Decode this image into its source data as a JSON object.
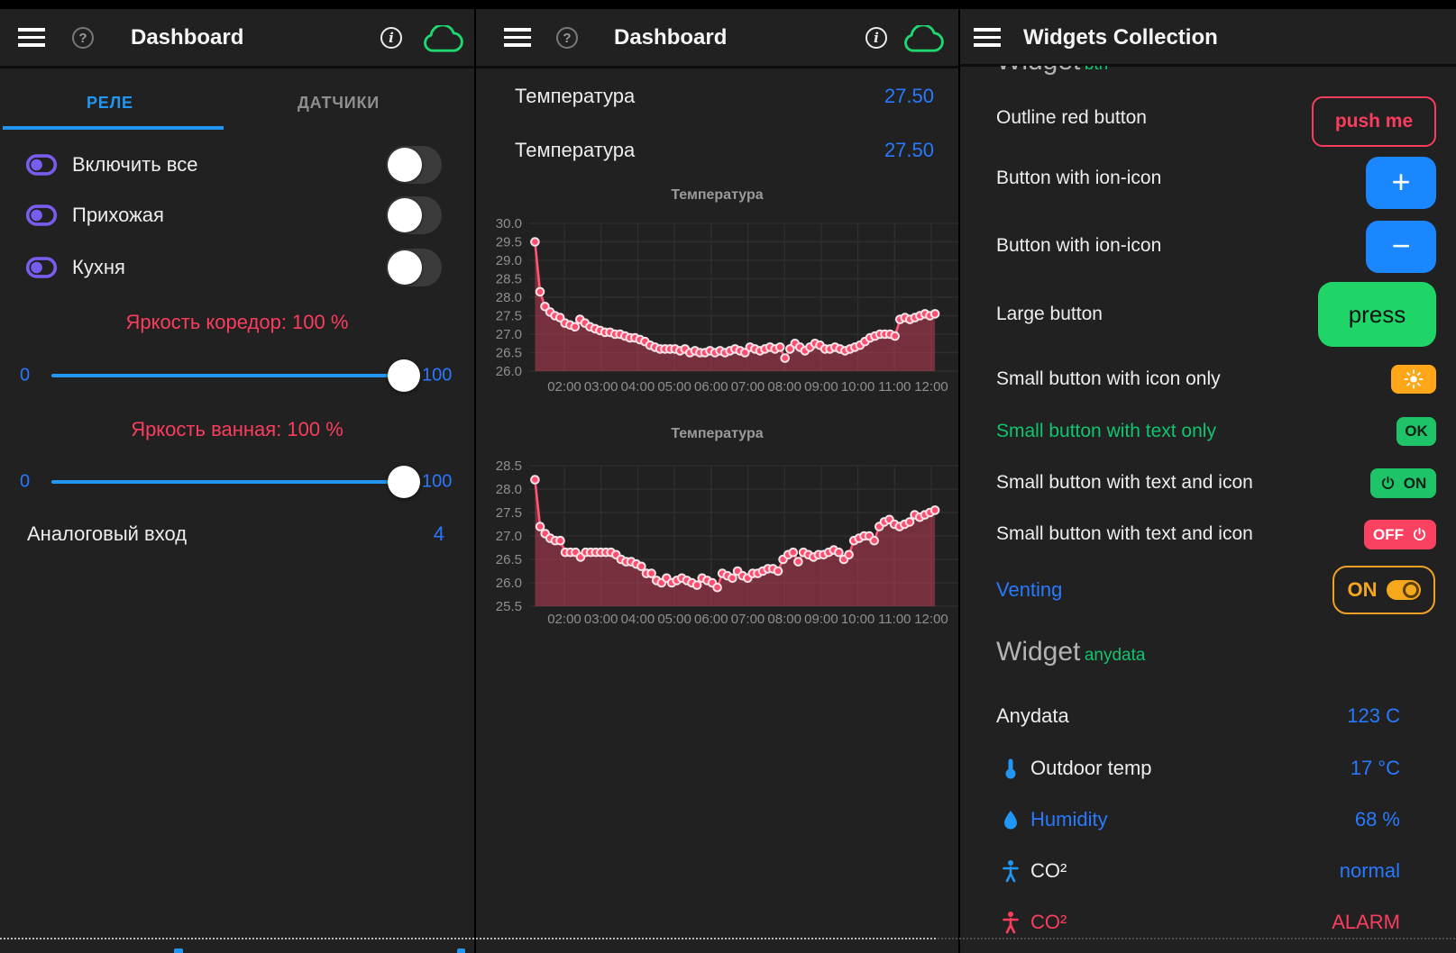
{
  "colors": {
    "background": "#212121",
    "accent_blue": "#2196f3",
    "value_blue": "#2979ff",
    "alert_red": "#fb3d5d",
    "button_green": "#1fc468",
    "text_green": "#10c56d",
    "amber": "#ffa718",
    "purple": "#7a5cf0",
    "chart_pink": "#ff5577",
    "cloud_green": "#1ed76e"
  },
  "icons": {
    "hamburger": "menu-icon",
    "help": "?",
    "info": "i",
    "cloud": "cloud-outline",
    "relay": "toggle-outline-purple",
    "sun": "sun-white",
    "power": "power-arc",
    "thermometer": "thermometer-blue",
    "droplet": "water-drop-blue",
    "body": "person-body"
  },
  "panels": {
    "left": {
      "header": {
        "title": "Dashboard"
      },
      "tabs": [
        {
          "label": "РЕЛЕ",
          "active": true
        },
        {
          "label": "ДАТЧИКИ",
          "active": false
        }
      ],
      "switch_rows": [
        {
          "label": "Включить все",
          "state": "off"
        },
        {
          "label": "Прихожая",
          "state": "off"
        },
        {
          "label": "Кухня",
          "state": "off"
        }
      ],
      "sliders": [
        {
          "label": "Яркость коредор: 100 %",
          "min": "0",
          "max": "100",
          "value": 100
        },
        {
          "label": "Яркость ванная: 100 %",
          "min": "0",
          "max": "100",
          "value": 100
        }
      ],
      "analog_row": {
        "label": "Аналоговый вход",
        "value": "4"
      }
    },
    "middle": {
      "header": {
        "title": "Dashboard"
      },
      "value_rows": [
        {
          "label": "Температура",
          "value": "27.50"
        },
        {
          "label": "Температура",
          "value": "27.50"
        }
      ]
    },
    "right": {
      "header": {
        "title": "Widgets Collection"
      },
      "clipped_heading": {
        "title": "Widget",
        "sub": "btn"
      },
      "button_rows": [
        {
          "label": "Outline red button",
          "button_text": "push me"
        },
        {
          "label": "Button with ion-icon",
          "icon": "plus",
          "icon_glyph": "+"
        },
        {
          "label": "Button with ion-icon",
          "icon": "minus",
          "icon_glyph": "−"
        },
        {
          "label": "Large button",
          "button_text": "press"
        },
        {
          "label": "Small button with icon only",
          "icon": "sun"
        },
        {
          "label": "Small button with text only",
          "button_text": "OK"
        },
        {
          "label": "Small button with text and icon",
          "button_text": "ON",
          "icon": "power"
        },
        {
          "label": "Small button with text and icon",
          "button_text": "OFF",
          "icon": "power"
        },
        {
          "label": "Venting",
          "button_text": "ON",
          "icon": "toggle-on",
          "state": "on"
        }
      ],
      "widget_heading": {
        "title": "Widget",
        "sub": "anydata"
      },
      "data_rows": [
        {
          "label": "Anydata",
          "value": "123 C"
        },
        {
          "icon": "thermometer",
          "label": "Outdoor temp",
          "value": "17 °C"
        },
        {
          "icon": "droplet",
          "label": "Humidity",
          "value": "68 %"
        },
        {
          "icon": "body",
          "label": "CO²",
          "value": "normal"
        },
        {
          "icon": "body",
          "label": "CO²",
          "value": "ALARM"
        }
      ]
    }
  },
  "chart_data": [
    {
      "type": "area",
      "title": "Температура",
      "series_name": "Температура",
      "ylim": [
        26.0,
        30.0
      ],
      "yticks": [
        "30.0",
        "29.5",
        "29.0",
        "28.5",
        "28.0",
        "27.5",
        "27.0",
        "26.5",
        "26.0"
      ],
      "x_labels": [
        "02:00",
        "03:00",
        "04:00",
        "05:00",
        "06:00",
        "07:00",
        "08:00",
        "09:00",
        "10:00",
        "11:00",
        "12:00"
      ],
      "x_hours": [
        2,
        3,
        4,
        5,
        6,
        7,
        8,
        9,
        10,
        11,
        12
      ],
      "x_range": [
        1.2,
        12.1
      ],
      "grid": true,
      "legend": "none",
      "values": [
        29.5,
        28.15,
        27.75,
        27.6,
        27.5,
        27.45,
        27.3,
        27.25,
        27.2,
        27.4,
        27.3,
        27.2,
        27.15,
        27.1,
        27.05,
        27.05,
        27.0,
        27.0,
        26.95,
        26.9,
        26.9,
        26.85,
        26.8,
        26.7,
        26.65,
        26.6,
        26.6,
        26.6,
        26.6,
        26.55,
        26.6,
        26.5,
        26.55,
        26.5,
        26.5,
        26.55,
        26.5,
        26.55,
        26.5,
        26.55,
        26.6,
        26.55,
        26.5,
        26.65,
        26.6,
        26.55,
        26.6,
        26.65,
        26.6,
        26.65,
        26.35,
        26.6,
        26.75,
        26.65,
        26.55,
        26.65,
        26.75,
        26.7,
        26.6,
        26.6,
        26.65,
        26.6,
        26.55,
        26.6,
        26.65,
        26.7,
        26.8,
        26.9,
        26.95,
        27.0,
        27.0,
        27.0,
        26.95,
        27.4,
        27.45,
        27.4,
        27.45,
        27.5,
        27.55,
        27.5,
        27.55
      ]
    },
    {
      "type": "area",
      "title": "Температура",
      "series_name": "Температура",
      "ylim": [
        25.5,
        28.5
      ],
      "yticks": [
        "28.5",
        "28.0",
        "27.5",
        "27.0",
        "26.5",
        "26.0",
        "25.5"
      ],
      "x_labels": [
        "02:00",
        "03:00",
        "04:00",
        "05:00",
        "06:00",
        "07:00",
        "08:00",
        "09:00",
        "10:00",
        "11:00",
        "12:00"
      ],
      "x_hours": [
        2,
        3,
        4,
        5,
        6,
        7,
        8,
        9,
        10,
        11,
        12
      ],
      "x_range": [
        1.2,
        12.1
      ],
      "grid": true,
      "legend": "none",
      "values": [
        28.2,
        27.2,
        27.05,
        26.95,
        26.9,
        26.9,
        26.65,
        26.65,
        26.65,
        26.55,
        26.65,
        26.65,
        26.65,
        26.65,
        26.65,
        26.65,
        26.6,
        26.5,
        26.45,
        26.45,
        26.4,
        26.35,
        26.2,
        26.2,
        26.05,
        26.0,
        26.1,
        26.0,
        26.05,
        26.1,
        26.05,
        26.0,
        25.95,
        26.1,
        26.05,
        26.0,
        25.9,
        26.2,
        26.15,
        26.1,
        26.25,
        26.15,
        26.1,
        26.2,
        26.2,
        26.25,
        26.3,
        26.3,
        26.25,
        26.5,
        26.6,
        26.65,
        26.45,
        26.65,
        26.6,
        26.55,
        26.6,
        26.6,
        26.65,
        26.7,
        26.65,
        26.5,
        26.6,
        26.9,
        26.95,
        27.0,
        27.0,
        26.9,
        27.2,
        27.3,
        27.35,
        27.25,
        27.2,
        27.25,
        27.3,
        27.45,
        27.4,
        27.45,
        27.5,
        27.55
      ]
    }
  ]
}
